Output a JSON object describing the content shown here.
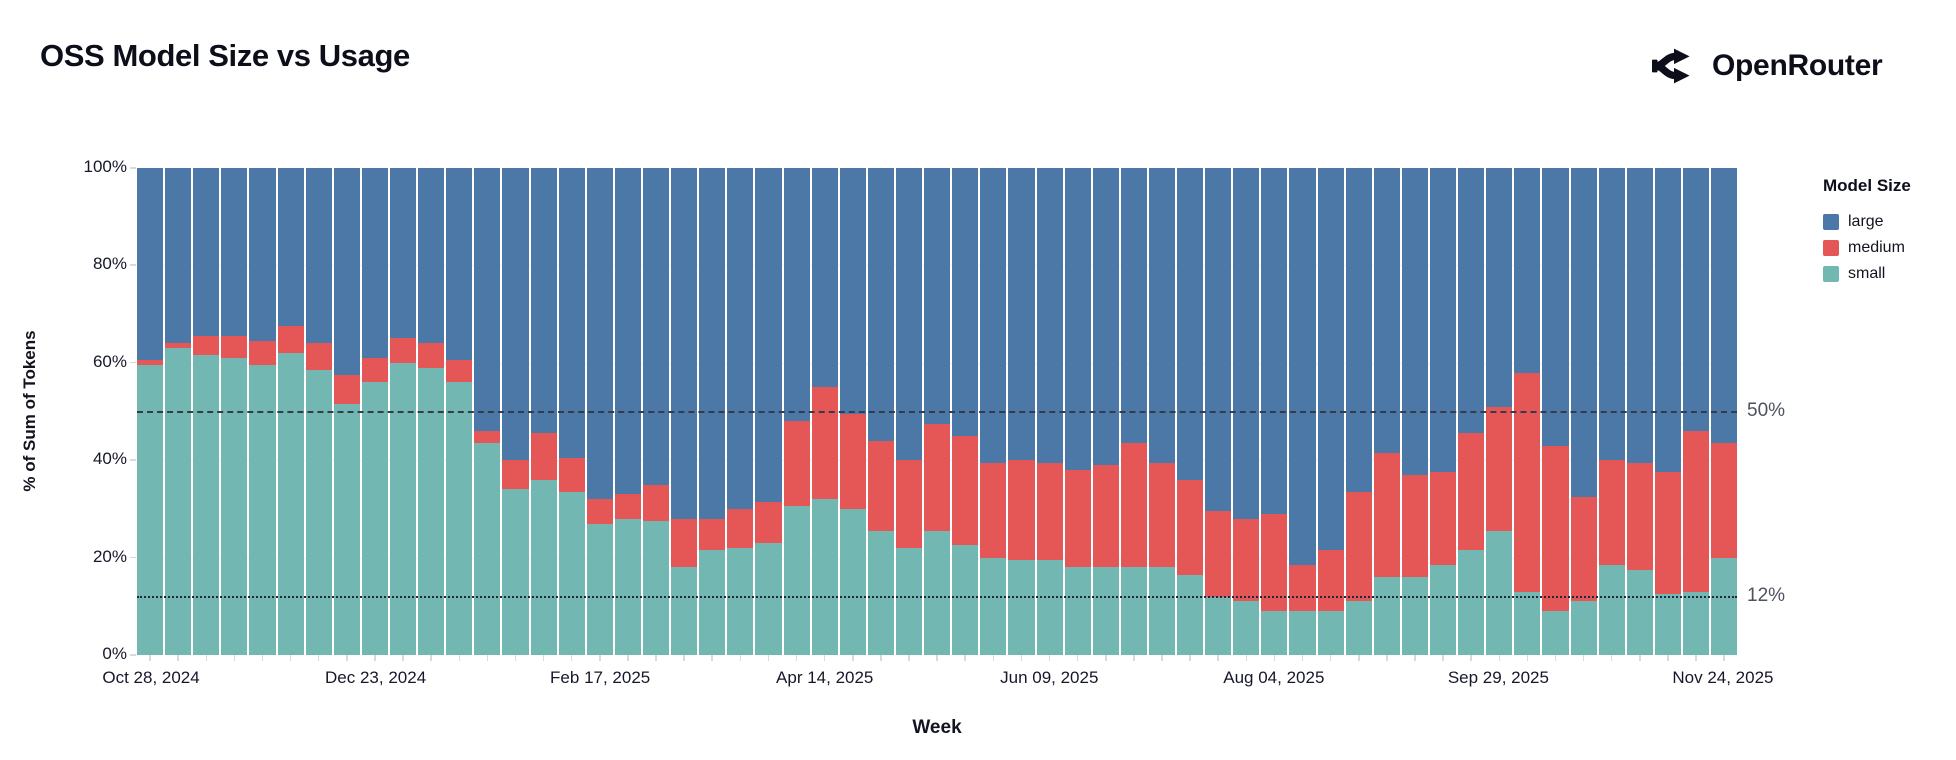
{
  "header": {
    "title": "OSS Model Size vs Usage",
    "brand": "OpenRouter"
  },
  "chart_data": {
    "type": "bar",
    "variant": "stacked-100-percent",
    "title": "OSS Model Size vs Usage",
    "xlabel": "Week",
    "ylabel": "% of Sum of Tokens",
    "ylim": [
      0,
      100
    ],
    "grid": "horizontal-faint",
    "bars_count": 57,
    "y_ticks": [
      {
        "value": 0,
        "label": "0%"
      },
      {
        "value": 20,
        "label": "20%"
      },
      {
        "value": 40,
        "label": "40%"
      },
      {
        "value": 60,
        "label": "60%"
      },
      {
        "value": 80,
        "label": "80%"
      },
      {
        "value": 100,
        "label": "100%"
      }
    ],
    "x_ticks": [
      {
        "bar_index": 0,
        "label": "Oct 28, 2024"
      },
      {
        "bar_index": 8,
        "label": "Dec 23, 2024"
      },
      {
        "bar_index": 16,
        "label": "Feb 17, 2025"
      },
      {
        "bar_index": 24,
        "label": "Apr 14, 2025"
      },
      {
        "bar_index": 32,
        "label": "Jun 09, 2025"
      },
      {
        "bar_index": 40,
        "label": "Aug 04, 2025"
      },
      {
        "bar_index": 48,
        "label": "Sep 29, 2025"
      },
      {
        "bar_index": 56,
        "label": "Nov 24, 2025"
      }
    ],
    "legend": {
      "title": "Model Size",
      "position": "right",
      "entries": [
        {
          "name": "large",
          "color": "#4c78a8"
        },
        {
          "name": "medium",
          "color": "#e45756"
        },
        {
          "name": "small",
          "color": "#72b7b2"
        }
      ]
    },
    "reference_lines": [
      {
        "value": 50,
        "label": "50%",
        "style": "dashed"
      },
      {
        "value": 12,
        "label": "12%",
        "style": "dotted"
      }
    ],
    "stack_order_top_to_bottom": [
      "large",
      "medium",
      "small"
    ],
    "series": [
      {
        "name": "large",
        "color": "#4c78a8",
        "values": [
          39.5,
          36,
          34.5,
          34.5,
          35.5,
          32.5,
          36,
          42.5,
          39,
          35,
          36,
          39.5,
          54,
          60,
          54.5,
          59.5,
          68,
          67,
          65,
          72,
          72,
          70,
          68.5,
          52,
          45,
          50.5,
          56,
          60,
          52.5,
          55,
          60.5,
          60,
          60.5,
          62,
          61,
          56.5,
          60.5,
          64,
          70.5,
          72,
          71,
          81.5,
          78.5,
          66.5,
          58.5,
          63,
          62.5,
          54.5,
          49,
          42,
          57,
          67.5,
          60,
          60.5,
          62.5,
          54,
          56.5
        ]
      },
      {
        "name": "medium",
        "color": "#e45756",
        "values": [
          1,
          1,
          4,
          4.5,
          5,
          5.5,
          5.5,
          6,
          5,
          5,
          5,
          4.5,
          2.5,
          6,
          9.5,
          7,
          5,
          5,
          7.5,
          10,
          6.5,
          8,
          8.5,
          17.5,
          23,
          19.5,
          18.5,
          18,
          22,
          22.5,
          19.5,
          20.5,
          20,
          20,
          21,
          25.5,
          21.5,
          19.5,
          17.5,
          17,
          20,
          9.5,
          12.5,
          22.5,
          25.5,
          21,
          19,
          24,
          25.5,
          45,
          34,
          21.5,
          21.5,
          22,
          25,
          33,
          23.5
        ]
      },
      {
        "name": "small",
        "color": "#72b7b2",
        "values": [
          59.5,
          63,
          61.5,
          61,
          59.5,
          62,
          58.5,
          51.5,
          56,
          60,
          59,
          56,
          43.5,
          34,
          36,
          33.5,
          27,
          28,
          27.5,
          18,
          21.5,
          22,
          23,
          30.5,
          32,
          30,
          25.5,
          22,
          25.5,
          22.5,
          20,
          19.5,
          19.5,
          18,
          18,
          18,
          18,
          16.5,
          12,
          11,
          9,
          9,
          9,
          11,
          16,
          16,
          18.5,
          21.5,
          25.5,
          13,
          9,
          11,
          18.5,
          17.5,
          12.5,
          13,
          20
        ]
      }
    ]
  }
}
